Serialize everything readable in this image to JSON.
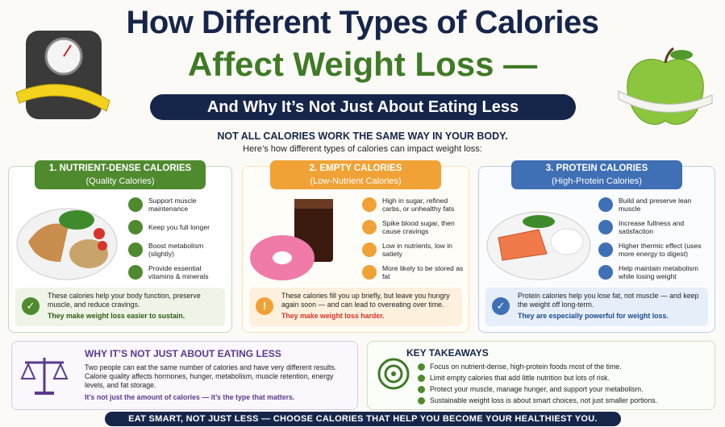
{
  "header": {
    "title_line1": "How Different Types of Calories",
    "title_line2": "Affect Weight Loss —",
    "subtitle": "And Why It’s Not Just About Eating Less"
  },
  "intro": {
    "heading": "NOT ALL CALORIES WORK THE SAME WAY IN YOUR BODY.",
    "text": "Here’s how different types of calories can impact weight loss:"
  },
  "cards": [
    {
      "title": "1. NUTRIENT-DENSE CALORIES",
      "subtitle": "(Quality Calories)",
      "points": [
        "Support muscle maintenance",
        "Keep you full longer",
        "Boost metabolism (slightly)",
        "Provide essential vitamins & minerals"
      ],
      "summary": "These calories help your body function, preserve muscle, and reduce cravings.",
      "emphasis": "They make weight loss easier to sustain."
    },
    {
      "title": "2. EMPTY CALORIES",
      "subtitle": "(Low-Nutrient Calories)",
      "points": [
        "High in sugar, refined carbs, or unhealthy fats",
        "Spike blood sugar, then cause cravings",
        "Low in nutrients, low in satiety",
        "More likely to be stored as fat"
      ],
      "summary": "These calories fill you up briefly, but leave you hungry again soon — and can lead to overeating over time.",
      "emphasis": "They make weight loss harder."
    },
    {
      "title": "3. PROTEIN CALORIES",
      "subtitle": "(High-Protein Calories)",
      "points": [
        "Build and preserve lean muscle",
        "Increase fullness and satisfaction",
        "Higher thermic effect (uses more energy to digest)",
        "Help maintain metabolism while losing weight"
      ],
      "summary": "Protein calories help you lose fat, not muscle — and keep the weight off long-term.",
      "emphasis": "They are especially powerful for weight loss."
    }
  ],
  "why": {
    "heading": "WHY IT’S NOT JUST ABOUT EATING LESS",
    "paragraphs": [
      "Two people can eat the same number of calories and have very different results.",
      "Calorie quality affects hormones, hunger, metabolism, muscle retention, energy levels, and fat storage."
    ],
    "emphasis": "It’s not just the amount of calories — it’s the type that matters."
  },
  "takeaways": {
    "heading": "KEY TAKEAWAYS",
    "items": [
      "Focus on nutrient-dense, high-protein foods most of the time.",
      "Limit empty calories that add little nutrition but lots of risk.",
      "Protect your muscle, manage hunger, and support your metabolism.",
      "Sustainable weight loss is about smart choices, not just smaller portions."
    ]
  },
  "footer": "EAT SMART, NOT JUST LESS — CHOOSE CALORIES THAT HELP YOU BECOME YOUR HEALTHIEST YOU."
}
